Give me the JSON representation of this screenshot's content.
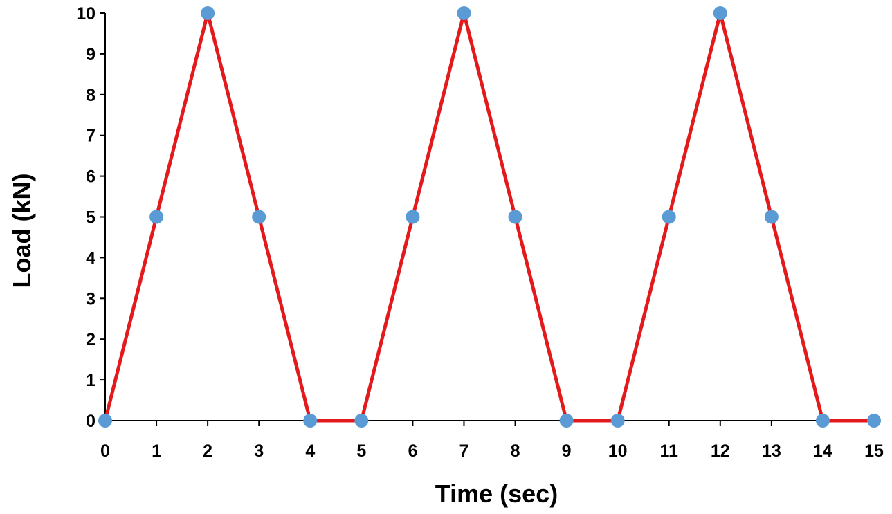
{
  "chart_data": {
    "type": "line",
    "title": "",
    "xlabel": "Time (sec)",
    "ylabel": "Load (kN)",
    "x": [
      0,
      1,
      2,
      3,
      4,
      5,
      6,
      7,
      8,
      9,
      10,
      11,
      12,
      13,
      14,
      15
    ],
    "series": [
      {
        "values": [
          0,
          5,
          10,
          5,
          0,
          0,
          5,
          10,
          5,
          0,
          0,
          5,
          10,
          5,
          0,
          0
        ],
        "line_color": "#e31a1c",
        "marker_color": "#5b9bd5"
      }
    ],
    "xlim": [
      0,
      15
    ],
    "ylim": [
      0,
      10
    ],
    "xticks": [
      "0",
      "1",
      "2",
      "3",
      "4",
      "5",
      "6",
      "7",
      "8",
      "9",
      "10",
      "11",
      "12",
      "13",
      "14",
      "15"
    ],
    "yticks": [
      "0",
      "1",
      "2",
      "3",
      "4",
      "5",
      "6",
      "7",
      "8",
      "9",
      "10"
    ],
    "grid": false,
    "legend": "none",
    "axis_color": "#000000"
  }
}
